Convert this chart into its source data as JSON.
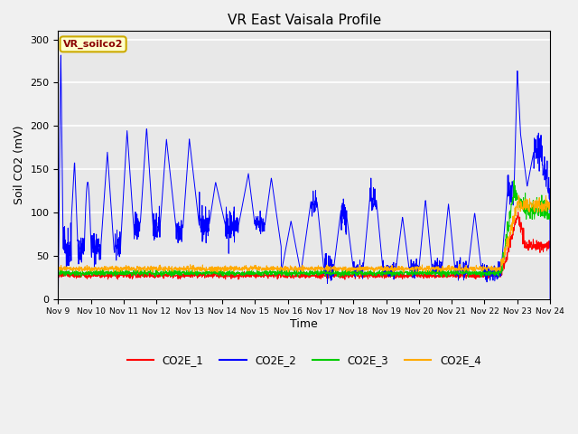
{
  "title": "VR East Vaisala Profile",
  "xlabel": "Time",
  "ylabel": "Soil CO2 (mV)",
  "annotation": "VR_soilco2",
  "ylim": [
    0,
    310
  ],
  "yticks": [
    0,
    50,
    100,
    150,
    200,
    250,
    300
  ],
  "xtick_labels": [
    "Nov 9",
    "Nov 10",
    "Nov 11",
    "Nov 12",
    "Nov 13",
    "Nov 14",
    "Nov 15",
    "Nov 16",
    "Nov 17",
    "Nov 18",
    "Nov 19",
    "Nov 20",
    "Nov 21",
    "Nov 22",
    "Nov 23",
    "Nov 24"
  ],
  "colors": {
    "CO2E_1": "#ff0000",
    "CO2E_2": "#0000ff",
    "CO2E_3": "#00cc00",
    "CO2E_4": "#ffaa00"
  },
  "fig_facecolor": "#f0f0f0",
  "ax_facecolor": "#e8e8e8",
  "grid_color": "#ffffff",
  "annotation_color": "#8B0000",
  "annotation_bg": "#ffffcc",
  "annotation_edge": "#ccaa00"
}
